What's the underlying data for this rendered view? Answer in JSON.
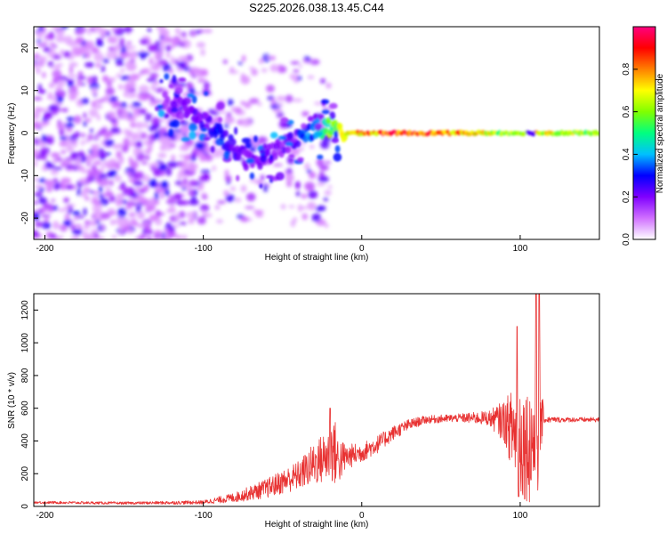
{
  "title": "S225.2026.038.13.45.C44",
  "chart_data": [
    {
      "type": "heatmap",
      "xlabel": "Height of straight line (km)",
      "ylabel": "Frequency (Hz)",
      "xlim": [
        -207,
        150
      ],
      "ylim": [
        -25,
        25
      ],
      "x_ticks": [
        -200,
        -100,
        0,
        100
      ],
      "y_ticks": [
        -20,
        -10,
        0,
        10,
        20
      ],
      "colorbar": {
        "label": "Normalized spectral amplitude",
        "range": [
          0,
          1
        ],
        "ticks": [
          "0.0",
          "0.2",
          "0.4",
          "0.6",
          "0.8"
        ],
        "colors": [
          "#ffffff",
          "#d070ff",
          "#8000ff",
          "#0000ff",
          "#00c0ff",
          "#00ff80",
          "#80ff00",
          "#ffff00",
          "#ff8000",
          "#ff0000",
          "#ff0080"
        ]
      },
      "ridge_trace": {
        "x": [
          -125,
          -110,
          -100,
          -90,
          -80,
          -70,
          -60,
          -50,
          -40,
          -30,
          -20,
          -10,
          0,
          20,
          40,
          60,
          80,
          100,
          110,
          130,
          150
        ],
        "freq": [
          8,
          5,
          3,
          0,
          -4,
          -7,
          -5,
          -3,
          -1,
          1,
          1,
          0,
          0,
          0,
          0,
          0,
          0,
          0,
          0,
          0,
          0
        ],
        "amplitude": [
          0.15,
          0.2,
          0.25,
          0.3,
          0.25,
          0.2,
          0.2,
          0.2,
          0.3,
          0.4,
          0.6,
          0.7,
          0.85,
          0.9,
          0.9,
          0.85,
          0.7,
          0.6,
          0.75,
          0.7,
          0.6
        ]
      }
    },
    {
      "type": "line",
      "xlabel": "Height of straight line (km)",
      "ylabel": "SNR (10 * v/v)",
      "xlim": [
        -207,
        150
      ],
      "ylim": [
        0,
        1300
      ],
      "x_ticks": [
        -200,
        -100,
        0,
        100
      ],
      "y_ticks": [
        0,
        200,
        400,
        600,
        800,
        1000,
        1200
      ],
      "series": [
        {
          "name": "SNR",
          "color": "#e83232",
          "envelope_x": [
            -207,
            -150,
            -100,
            -80,
            -60,
            -40,
            -30,
            -20,
            -18,
            -15,
            -10,
            0,
            10,
            20,
            30,
            40,
            60,
            80,
            90,
            95,
            100,
            105,
            110,
            112,
            115,
            130,
            150
          ],
          "envelope_y": [
            25,
            20,
            25,
            55,
            110,
            190,
            260,
            320,
            360,
            280,
            300,
            330,
            380,
            450,
            500,
            530,
            540,
            540,
            520,
            470,
            420,
            380,
            420,
            560,
            530,
            530,
            530
          ],
          "noise_x": [
            -207,
            -150,
            -100,
            -80,
            -60,
            -40,
            -30,
            -20,
            -18,
            -15,
            -10,
            0,
            10,
            20,
            30,
            40,
            60,
            80,
            90,
            95,
            100,
            105,
            110,
            112,
            115,
            130,
            150
          ],
          "noise_amp": [
            8,
            8,
            12,
            30,
            60,
            90,
            130,
            180,
            230,
            160,
            80,
            60,
            55,
            45,
            35,
            25,
            25,
            45,
            130,
            250,
            380,
            350,
            450,
            420,
            20,
            15,
            15
          ],
          "peaks": [
            {
              "x": 98,
              "y": 1100
            },
            {
              "x": 110,
              "y": 1300
            },
            {
              "x": 112,
              "y": 1300
            },
            {
              "x": -20,
              "y": 600
            },
            {
              "x": 99,
              "y": 60
            }
          ]
        }
      ]
    }
  ]
}
